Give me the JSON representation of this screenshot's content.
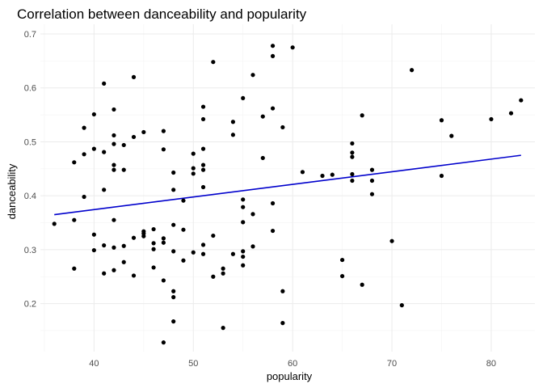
{
  "chart_data": {
    "type": "scatter",
    "title": "Correlation between danceability and popularity",
    "xlabel": "popularity",
    "ylabel": "danceability",
    "xlim": [
      34.6,
      84.4
    ],
    "ylim": [
      0.111,
      0.718
    ],
    "x_ticks": [
      40,
      50,
      60,
      70,
      80
    ],
    "y_ticks": [
      0.2,
      0.3,
      0.4,
      0.5,
      0.6,
      0.7
    ],
    "x_tick_labels": [
      "40",
      "50",
      "60",
      "70",
      "80"
    ],
    "y_tick_labels": [
      "0.2",
      "0.3",
      "0.4",
      "0.5",
      "0.6",
      "0.7"
    ],
    "grid": true,
    "point_color": "#000000",
    "trend_color": "#0000cc",
    "trend_line": {
      "x": [
        36,
        83
      ],
      "y": [
        0.365,
        0.475
      ]
    },
    "points": [
      [
        36,
        0.348
      ],
      [
        38,
        0.462
      ],
      [
        38,
        0.355
      ],
      [
        38,
        0.265
      ],
      [
        39,
        0.526
      ],
      [
        39,
        0.477
      ],
      [
        39,
        0.398
      ],
      [
        40,
        0.551
      ],
      [
        40,
        0.487
      ],
      [
        40,
        0.328
      ],
      [
        40,
        0.299
      ],
      [
        41,
        0.608
      ],
      [
        41,
        0.481
      ],
      [
        41,
        0.411
      ],
      [
        41,
        0.308
      ],
      [
        41,
        0.256
      ],
      [
        42,
        0.56
      ],
      [
        42,
        0.512
      ],
      [
        42,
        0.496
      ],
      [
        42,
        0.457
      ],
      [
        42,
        0.448
      ],
      [
        42,
        0.355
      ],
      [
        42,
        0.304
      ],
      [
        42,
        0.262
      ],
      [
        43,
        0.494
      ],
      [
        43,
        0.448
      ],
      [
        43,
        0.307
      ],
      [
        43,
        0.277
      ],
      [
        44,
        0.62
      ],
      [
        44,
        0.509
      ],
      [
        44,
        0.322
      ],
      [
        44,
        0.252
      ],
      [
        45,
        0.518
      ],
      [
        45,
        0.334
      ],
      [
        45,
        0.33
      ],
      [
        45,
        0.325
      ],
      [
        46,
        0.338
      ],
      [
        46,
        0.312
      ],
      [
        46,
        0.301
      ],
      [
        46,
        0.267
      ],
      [
        47,
        0.52
      ],
      [
        47,
        0.486
      ],
      [
        47,
        0.321
      ],
      [
        47,
        0.313
      ],
      [
        47,
        0.243
      ],
      [
        47,
        0.128
      ],
      [
        48,
        0.443
      ],
      [
        48,
        0.411
      ],
      [
        48,
        0.346
      ],
      [
        48,
        0.297
      ],
      [
        48,
        0.223
      ],
      [
        48,
        0.212
      ],
      [
        48,
        0.167
      ],
      [
        49,
        0.391
      ],
      [
        49,
        0.337
      ],
      [
        49,
        0.28
      ],
      [
        50,
        0.478
      ],
      [
        50,
        0.451
      ],
      [
        50,
        0.441
      ],
      [
        50,
        0.295
      ],
      [
        51,
        0.565
      ],
      [
        51,
        0.542
      ],
      [
        51,
        0.487
      ],
      [
        51,
        0.457
      ],
      [
        51,
        0.448
      ],
      [
        51,
        0.416
      ],
      [
        51,
        0.309
      ],
      [
        51,
        0.292
      ],
      [
        52,
        0.648
      ],
      [
        52,
        0.326
      ],
      [
        52,
        0.25
      ],
      [
        53,
        0.265
      ],
      [
        53,
        0.256
      ],
      [
        53,
        0.155
      ],
      [
        54,
        0.537
      ],
      [
        54,
        0.513
      ],
      [
        54,
        0.292
      ],
      [
        55,
        0.581
      ],
      [
        55,
        0.393
      ],
      [
        55,
        0.379
      ],
      [
        55,
        0.351
      ],
      [
        55,
        0.297
      ],
      [
        55,
        0.287
      ],
      [
        55,
        0.271
      ],
      [
        56,
        0.624
      ],
      [
        56,
        0.366
      ],
      [
        56,
        0.306
      ],
      [
        57,
        0.547
      ],
      [
        57,
        0.47
      ],
      [
        58,
        0.678
      ],
      [
        58,
        0.659
      ],
      [
        58,
        0.562
      ],
      [
        58,
        0.386
      ],
      [
        58,
        0.335
      ],
      [
        59,
        0.527
      ],
      [
        59,
        0.223
      ],
      [
        59,
        0.164
      ],
      [
        60,
        0.675
      ],
      [
        61,
        0.444
      ],
      [
        63,
        0.437
      ],
      [
        64,
        0.439
      ],
      [
        65,
        0.281
      ],
      [
        65,
        0.251
      ],
      [
        66,
        0.497
      ],
      [
        66,
        0.48
      ],
      [
        66,
        0.472
      ],
      [
        66,
        0.44
      ],
      [
        66,
        0.428
      ],
      [
        67,
        0.549
      ],
      [
        67,
        0.235
      ],
      [
        68,
        0.448
      ],
      [
        68,
        0.428
      ],
      [
        68,
        0.403
      ],
      [
        70,
        0.316
      ],
      [
        71,
        0.197
      ],
      [
        72,
        0.633
      ],
      [
        75,
        0.54
      ],
      [
        75,
        0.437
      ],
      [
        76,
        0.511
      ],
      [
        80,
        0.542
      ],
      [
        82,
        0.553
      ],
      [
        83,
        0.577
      ]
    ]
  }
}
